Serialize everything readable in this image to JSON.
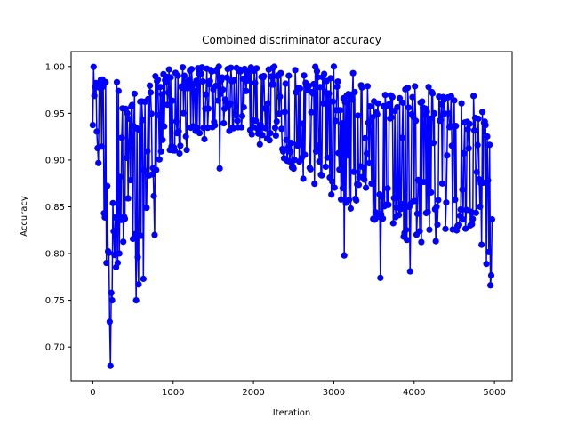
{
  "chart_data": {
    "type": "line",
    "title": "Combined discriminator accuracy",
    "xlabel": "Iteration",
    "ylabel": "Accuracy",
    "xlim": [
      -270,
      5220
    ],
    "ylim": [
      0.664,
      1.016
    ],
    "xticks": [
      0,
      1000,
      2000,
      3000,
      4000,
      5000
    ],
    "xtick_labels": [
      "0",
      "1000",
      "2000",
      "3000",
      "4000",
      "5000"
    ],
    "yticks": [
      0.7,
      0.75,
      0.8,
      0.85,
      0.9,
      0.95,
      1.0
    ],
    "ytick_labels": [
      "0.70",
      "0.75",
      "0.80",
      "0.85",
      "0.90",
      "0.95",
      "1.00"
    ],
    "grid": false,
    "legend": "none",
    "marker": "circle",
    "series": [
      {
        "color": "#0000ff",
        "description": "Per-iteration combined discriminator accuracy, one point every 10 iterations from 0 to 4970; values oscillate heavily between a lower and upper envelope",
        "x_start": 0,
        "x_step": 10,
        "x_end": 4970,
        "envelope": {
          "x": [
            0,
            100,
            200,
            300,
            400,
            500,
            600,
            700,
            800,
            900,
            1000,
            1200,
            1400,
            1600,
            1800,
            2000,
            2200,
            2400,
            2600,
            2800,
            3000,
            3200,
            3400,
            3600,
            3800,
            4000,
            4200,
            4400,
            4600,
            4800,
            4970
          ],
          "low": [
            0.91,
            0.88,
            0.73,
            0.79,
            0.78,
            0.77,
            0.77,
            0.87,
            0.82,
            0.92,
            0.9,
            0.91,
            0.92,
            0.93,
            0.93,
            0.92,
            0.91,
            0.9,
            0.88,
            0.87,
            0.86,
            0.84,
            0.84,
            0.83,
            0.82,
            0.81,
            0.81,
            0.81,
            0.82,
            0.81,
            0.77
          ],
          "high": [
            1.0,
            1.0,
            1.0,
            0.99,
            0.98,
            0.99,
            0.96,
            0.99,
            0.99,
            1.0,
            1.0,
            1.0,
            1.0,
            1.0,
            1.0,
            1.0,
            1.0,
            1.0,
            1.0,
            1.0,
            0.99,
            0.99,
            0.98,
            0.98,
            0.98,
            0.98,
            0.98,
            0.97,
            0.97,
            0.97,
            0.96
          ]
        },
        "notable_points": [
          {
            "x": 220,
            "y": 0.68
          },
          {
            "x": 210,
            "y": 0.727
          },
          {
            "x": 240,
            "y": 0.75
          },
          {
            "x": 170,
            "y": 0.735
          },
          {
            "x": 230,
            "y": 0.758
          },
          {
            "x": 170,
            "y": 0.79
          },
          {
            "x": 540,
            "y": 0.75
          },
          {
            "x": 570,
            "y": 0.767
          },
          {
            "x": 630,
            "y": 0.773
          },
          {
            "x": 770,
            "y": 0.82
          },
          {
            "x": 1580,
            "y": 0.891
          },
          {
            "x": 3130,
            "y": 0.798
          },
          {
            "x": 3580,
            "y": 0.774
          },
          {
            "x": 3950,
            "y": 0.781
          },
          {
            "x": 4900,
            "y": 0.789
          },
          {
            "x": 4950,
            "y": 0.766
          },
          {
            "x": 3000,
            "y": 1.0
          },
          {
            "x": 3240,
            "y": 0.993
          }
        ]
      }
    ]
  }
}
